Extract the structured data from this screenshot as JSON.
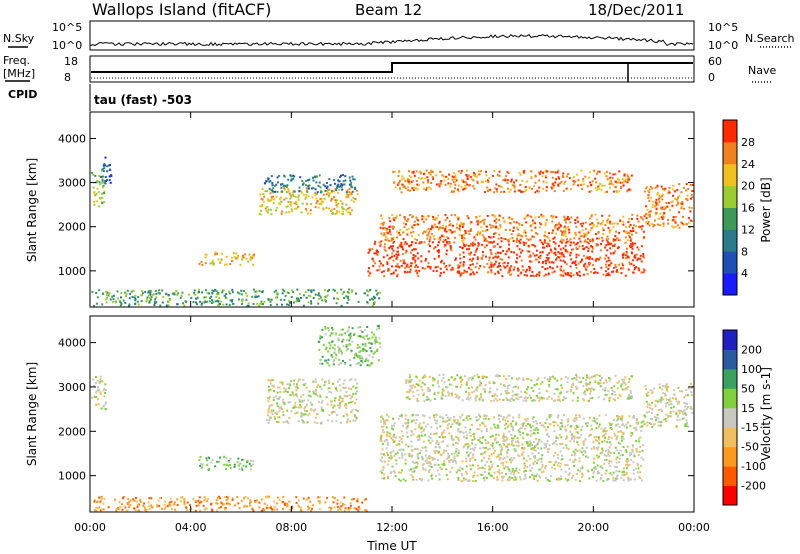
{
  "header": {
    "site": "Wallops Island (fitACF)",
    "beam": "Beam 12",
    "date": "18/Dec/2011"
  },
  "top_panels": {
    "nsky_label": "N.Sky",
    "nsky_ticks": [
      "10^5",
      "10^0"
    ],
    "nsearch_label": "N.Search",
    "nsearch_ticks": [
      "10^5",
      "10^0"
    ],
    "freq_label": "Freq.",
    "freq_unit": "[MHz]",
    "freq_ticks": [
      "18",
      "8"
    ],
    "nave_label": "Nave",
    "nave_ticks": [
      "60",
      "0"
    ],
    "cpid_label": "CPID",
    "cpid_text": "tau (fast) -503"
  },
  "chart_data": [
    {
      "type": "heatmap",
      "name": "power",
      "ylabel": "Slant Range [km]",
      "ylim": [
        180,
        4600
      ],
      "yticks": [
        1000,
        2000,
        3000,
        4000
      ],
      "xlim": [
        0,
        24
      ],
      "colorbar_label": "Power [dB]",
      "colorbar_ticks": [
        "4",
        "8",
        "12",
        "16",
        "20",
        "24",
        "28"
      ],
      "colorbar_colors": [
        "#1a1aff",
        "#1e4fb5",
        "#2a7a8a",
        "#3f9a5a",
        "#9acd32",
        "#f0c020",
        "#f08020",
        "#ff2a00"
      ],
      "regions": [
        {
          "t0": 0.0,
          "t1": 0.55,
          "r0": 2400,
          "r1": 3300,
          "level": 4
        },
        {
          "t0": 0.4,
          "t1": 0.9,
          "r0": 3000,
          "r1": 3600,
          "level": 1
        },
        {
          "t0": 4.3,
          "t1": 6.5,
          "r0": 1150,
          "r1": 1450,
          "level": 5
        },
        {
          "t0": 6.7,
          "t1": 10.6,
          "r0": 2300,
          "r1": 2900,
          "level": 5
        },
        {
          "t0": 6.9,
          "t1": 10.6,
          "r0": 2800,
          "r1": 3200,
          "level": 2
        },
        {
          "t0": 11.0,
          "t1": 22.0,
          "r0": 900,
          "r1": 1700,
          "level": 7
        },
        {
          "t0": 11.5,
          "t1": 22.0,
          "r0": 1700,
          "r1": 2300,
          "level": 6
        },
        {
          "t0": 12.0,
          "t1": 21.5,
          "r0": 2800,
          "r1": 3300,
          "level": 6
        },
        {
          "t0": 22.0,
          "t1": 24.0,
          "r0": 2000,
          "r1": 3000,
          "level": 6
        },
        {
          "t0": 0.0,
          "t1": 11.5,
          "r0": 200,
          "r1": 600,
          "level": 3
        }
      ]
    },
    {
      "type": "heatmap",
      "name": "velocity",
      "ylabel": "Slant Range [km]",
      "ylim": [
        180,
        4600
      ],
      "yticks": [
        1000,
        2000,
        3000,
        4000
      ],
      "xlim": [
        0,
        24
      ],
      "xticks": [
        "00:00",
        "04:00",
        "08:00",
        "12:00",
        "16:00",
        "20:00",
        "00:00"
      ],
      "xlabel": "Time UT",
      "colorbar_label": "Velocity [m s-1]",
      "colorbar_ticks": [
        "-200",
        "-100",
        "-50",
        "-15",
        "15",
        "50",
        "100",
        "200"
      ],
      "colorbar_colors": [
        "#ff0000",
        "#ff5a00",
        "#ff9a20",
        "#f0c060",
        "#c8c8c0",
        "#80d040",
        "#3aa060",
        "#2a5aa0",
        "#2020c0"
      ],
      "regions": [
        {
          "t0": 0.0,
          "t1": 0.6,
          "r0": 2500,
          "r1": 3300,
          "level": 4
        },
        {
          "t0": 4.3,
          "t1": 6.5,
          "r0": 1150,
          "r1": 1450,
          "level": 5
        },
        {
          "t0": 7.0,
          "t1": 10.6,
          "r0": 2200,
          "r1": 3200,
          "level": 4
        },
        {
          "t0": 11.5,
          "t1": 22.0,
          "r0": 900,
          "r1": 2400,
          "level": 4
        },
        {
          "t0": 12.5,
          "t1": 21.5,
          "r0": 2700,
          "r1": 3300,
          "level": 4
        },
        {
          "t0": 22.0,
          "t1": 24.0,
          "r0": 2100,
          "r1": 3100,
          "level": 4
        },
        {
          "t0": 9.0,
          "t1": 11.5,
          "r0": 3500,
          "r1": 4400,
          "level": 5
        },
        {
          "t0": 0.0,
          "t1": 11.0,
          "r0": 200,
          "r1": 550,
          "level": 2
        }
      ]
    }
  ]
}
